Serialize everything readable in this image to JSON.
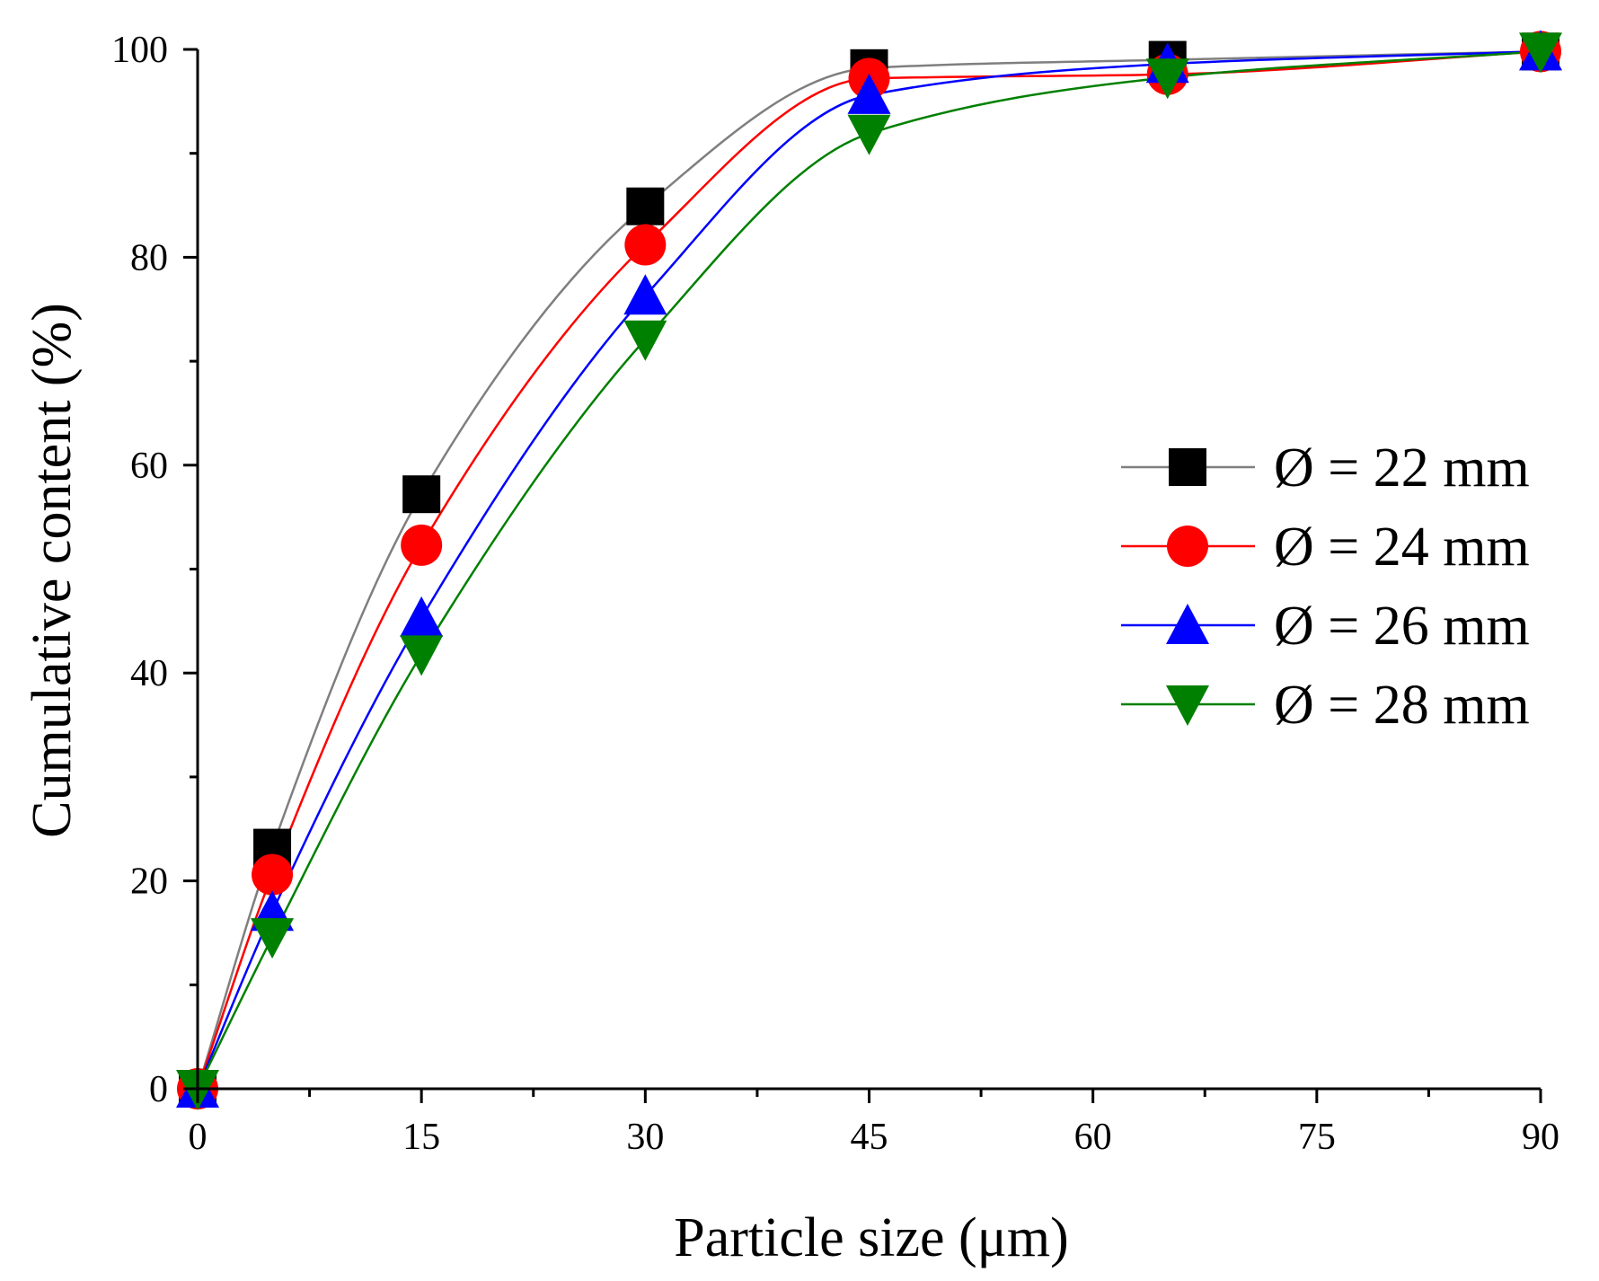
{
  "chart_data": {
    "type": "line",
    "title": "",
    "xlabel": "Particle size (μm)",
    "ylabel": "Cumulative content (%)",
    "xlim": [
      0,
      90
    ],
    "ylim": [
      0,
      100
    ],
    "xticks": [
      0,
      15,
      30,
      45,
      60,
      75,
      90
    ],
    "yticks": [
      0,
      20,
      40,
      60,
      80,
      100
    ],
    "x_minor_step": 7.5,
    "y_minor_step": 10,
    "grid": false,
    "legend_position": "right",
    "x": [
      0,
      5,
      15,
      30,
      45,
      65,
      90
    ],
    "series": [
      {
        "name": "Ø = 22 mm",
        "color": "#000000",
        "line_color": "#7f7f7f",
        "marker": "square",
        "values": [
          0,
          23.2,
          57.2,
          84.9,
          98.2,
          99.0,
          99.8
        ]
      },
      {
        "name": "Ø = 24 mm",
        "color": "#ff0000",
        "line_color": "#ff0000",
        "marker": "circle",
        "values": [
          0,
          20.6,
          52.3,
          81.2,
          97.2,
          97.6,
          99.8
        ]
      },
      {
        "name": "Ø = 26 mm",
        "color": "#0000ff",
        "line_color": "#0000ff",
        "marker": "triangle-up",
        "values": [
          0,
          17.0,
          45.3,
          76.3,
          95.6,
          98.6,
          99.8
        ]
      },
      {
        "name": "Ø = 28 mm",
        "color": "#008000",
        "line_color": "#008000",
        "marker": "triangle-down",
        "values": [
          0,
          14.6,
          41.8,
          72.1,
          91.9,
          97.3,
          99.8
        ]
      }
    ]
  }
}
